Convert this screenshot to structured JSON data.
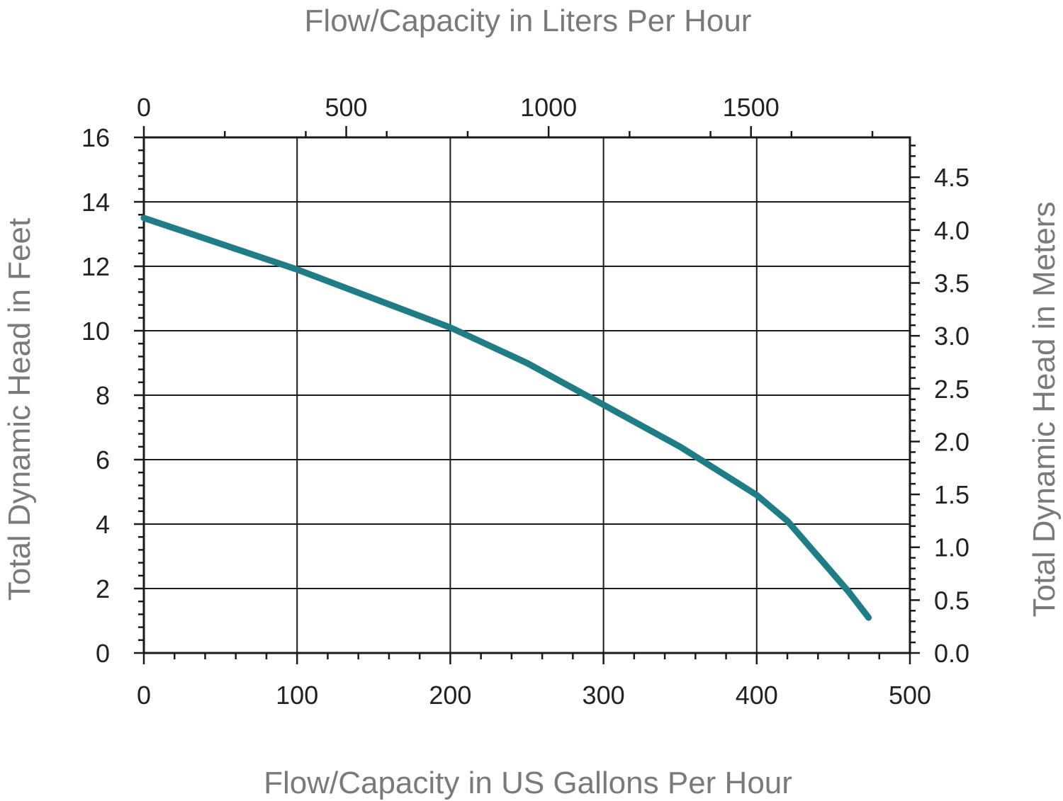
{
  "chart_data": {
    "type": "line",
    "title": "",
    "x_label_top": "Flow/Capacity in Liters Per Hour",
    "x_label_bottom": "Flow/Capacity in US Gallons Per Hour",
    "y_label_left": "Total Dynamic Head in Feet",
    "y_label_right": "Total Dynamic Head in Meters",
    "xlim": [
      0,
      500
    ],
    "ylim": [
      0,
      16
    ],
    "x_ticks_bottom": [
      "0",
      "100",
      "200",
      "300",
      "400",
      "500"
    ],
    "x_ticks_top": [
      "0",
      "500",
      "1000",
      "1500"
    ],
    "y_ticks_left": [
      "0",
      "2",
      "4",
      "6",
      "8",
      "10",
      "12",
      "14",
      "16"
    ],
    "y_ticks_right": [
      "0.0",
      "0.5",
      "1.0",
      "1.5",
      "2.0",
      "2.5",
      "3.0",
      "3.5",
      "4.0",
      "4.5"
    ],
    "grid": true,
    "series": [
      {
        "x": [
          0,
          50,
          100,
          150,
          200,
          250,
          300,
          350,
          400,
          420,
          440,
          460,
          473
        ],
        "y": [
          13.5,
          12.7,
          11.9,
          11.0,
          10.1,
          9.0,
          7.7,
          6.4,
          4.9,
          4.1,
          3.0,
          1.9,
          1.1
        ]
      }
    ],
    "colors": {
      "line": "#1f7d86",
      "axis_title": "#7a7a7a",
      "tick_label": "#222222"
    }
  }
}
